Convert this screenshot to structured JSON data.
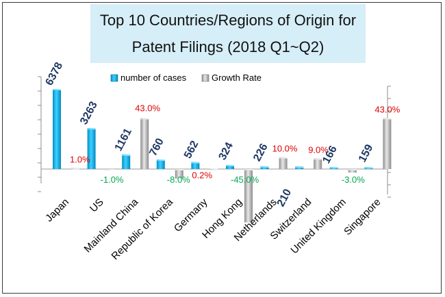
{
  "chart_data": {
    "type": "bar",
    "title": "Top 10 Countries/Regions of Origin for Patent Filings (2018 Q1~Q2)",
    "title_lines": [
      "Top 10 Countries/Regions of Origin for",
      "Patent Filings (2018 Q1~Q2)"
    ],
    "categories": [
      "Japan",
      "US",
      "Mainland China",
      "Republic of Korea",
      "Germany",
      "Hong Kong",
      "Netherlands",
      "Switzerland",
      "United Kingdom",
      "Singapore"
    ],
    "series": [
      {
        "name": "number of cases",
        "values": [
          6378,
          3263,
          1161,
          760,
          562,
          324,
          226,
          210,
          166,
          159
        ],
        "labels": [
          "6378",
          "3263",
          "1161",
          "760",
          "562",
          "324",
          "226",
          "210",
          "166",
          "159"
        ],
        "color": "#00b0f0"
      },
      {
        "name": "Growth Rate",
        "values": [
          1.0,
          -1.0,
          43.0,
          -8.0,
          0.2,
          -45.0,
          10.0,
          9.0,
          -3.0,
          43.0
        ],
        "labels": [
          "1.0%",
          "-1.0%",
          "43.0%",
          "-8.0%",
          "0.2%",
          "-45.0%",
          "10.0%",
          "9.0%",
          "-3.0%",
          "43.0%"
        ],
        "color": "#bfbfbf"
      }
    ],
    "legend_position": "top-center",
    "positive_rate_color": "#e00000",
    "negative_rate_color": "#00a850"
  }
}
